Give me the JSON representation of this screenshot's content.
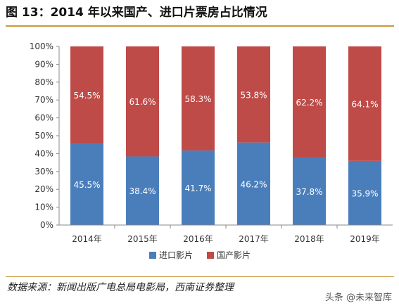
{
  "figure": {
    "title": "图 13：2014 年以来国产、进口片票房占比情况",
    "source": "数据来源：新闻出版广电总局电影局，西南证券整理",
    "watermark": "头条 @未来智库"
  },
  "chart_data": {
    "type": "bar",
    "stacked": true,
    "categories": [
      "2014年",
      "2015年",
      "2016年",
      "2017年",
      "2018年",
      "2019年"
    ],
    "series": [
      {
        "name": "进口影片",
        "color": "#4a7ebb",
        "values": [
          45.5,
          38.4,
          41.7,
          46.2,
          37.8,
          35.9
        ],
        "labels": [
          "45.5%",
          "38.4%",
          "41.7%",
          "46.2%",
          "37.8%",
          "35.9%"
        ]
      },
      {
        "name": "国产影片",
        "color": "#be4b48",
        "values": [
          54.5,
          61.6,
          58.3,
          53.8,
          62.2,
          64.1
        ],
        "labels": [
          "54.5%",
          "61.6%",
          "58.3%",
          "53.8%",
          "62.2%",
          "64.1%"
        ]
      }
    ],
    "y_ticks": [
      "0%",
      "10%",
      "20%",
      "30%",
      "40%",
      "50%",
      "60%",
      "70%",
      "80%",
      "90%",
      "100%"
    ],
    "ylim": [
      0,
      100
    ],
    "legend_position": "bottom"
  }
}
